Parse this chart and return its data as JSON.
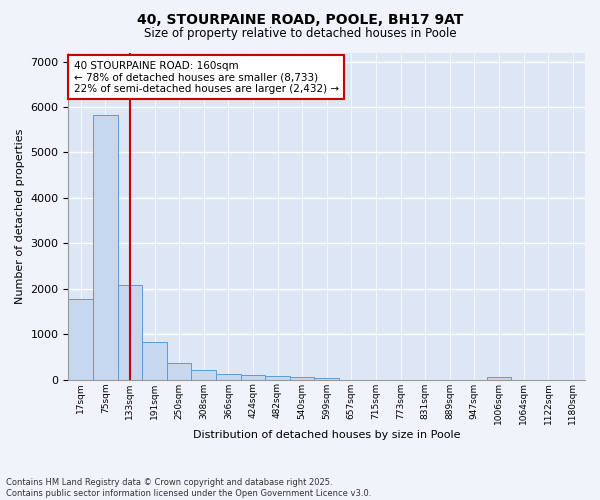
{
  "title_line1": "40, STOURPAINE ROAD, POOLE, BH17 9AT",
  "title_line2": "Size of property relative to detached houses in Poole",
  "xlabel": "Distribution of detached houses by size in Poole",
  "ylabel": "Number of detached properties",
  "categories": [
    "17sqm",
    "75sqm",
    "133sqm",
    "191sqm",
    "250sqm",
    "308sqm",
    "366sqm",
    "424sqm",
    "482sqm",
    "540sqm",
    "599sqm",
    "657sqm",
    "715sqm",
    "773sqm",
    "831sqm",
    "889sqm",
    "947sqm",
    "1006sqm",
    "1064sqm",
    "1122sqm",
    "1180sqm"
  ],
  "values": [
    1780,
    5820,
    2090,
    820,
    370,
    210,
    130,
    95,
    80,
    55,
    40,
    0,
    0,
    0,
    0,
    0,
    0,
    55,
    0,
    0,
    0
  ],
  "bar_color": "#c5d8f0",
  "bar_edge_color": "#5b9bd5",
  "vline_x": 2,
  "vline_color": "#cc0000",
  "annotation_text": "40 STOURPAINE ROAD: 160sqm\n← 78% of detached houses are smaller (8,733)\n22% of semi-detached houses are larger (2,432) →",
  "annotation_box_color": "#ffffff",
  "annotation_box_edge_color": "#cc0000",
  "ylim": [
    0,
    7200
  ],
  "yticks": [
    0,
    1000,
    2000,
    3000,
    4000,
    5000,
    6000,
    7000
  ],
  "plot_bg_color": "#dce6f5",
  "fig_bg_color": "#f0f4fa",
  "grid_color": "#ffffff",
  "footer_line1": "Contains HM Land Registry data © Crown copyright and database right 2025.",
  "footer_line2": "Contains public sector information licensed under the Open Government Licence v3.0."
}
